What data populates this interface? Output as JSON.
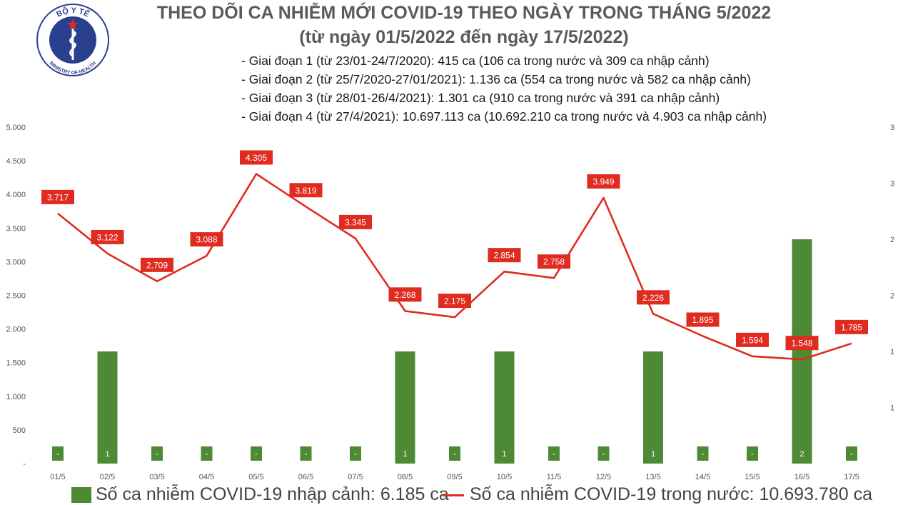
{
  "header": {
    "logo_top_text": "BỘ Y TẾ",
    "logo_bottom_text": "MINISTRY OF HEALTH",
    "title": "THEO DÕI CA NHIỄM MỚI COVID-19 THEO NGÀY TRONG THÁNG 5/2022",
    "subtitle": "(từ ngày 01/5/2022 đến ngày 17/5/2022)",
    "notes": [
      "- Giai đoạn 1 (từ 23/01-24/7/2020): 415 ca (106 ca trong nước và 309 ca nhập cảnh)",
      "- Giai đoạn 2 (từ 25/7/2020-27/01/2021): 1.136 ca (554 ca trong nước và 582 ca nhập cảnh)",
      "- Giai đoạn 3 (từ 28/01-26/4/2021): 1.301 ca (910 ca trong nước và 391 ca nhập cảnh)",
      "- Giai đoạn 4 (từ 27/4/2021): 10.697.113 ca (10.692.210 ca trong nước và 4.903 ca nhập cảnh)"
    ]
  },
  "colors": {
    "bar": "#4e8a35",
    "line": "#e02b20",
    "label_bg": "#e02b20",
    "label_text": "#ffffff"
  },
  "chart_data": {
    "type": "bar+line",
    "categories": [
      "01/5",
      "02/5",
      "03/5",
      "04/5",
      "05/5",
      "06/5",
      "07/5",
      "08/5",
      "09/5",
      "10/5",
      "11/5",
      "12/5",
      "13/5",
      "14/5",
      "15/5",
      "16/5",
      "17/5"
    ],
    "left_axis": {
      "ylim": [
        0,
        5000
      ],
      "ticks": [
        0,
        500,
        1000,
        1500,
        2000,
        2500,
        3000,
        3500,
        4000,
        4500,
        5000
      ],
      "tick_labels": [
        "-",
        "500",
        "1.000",
        "1.500",
        "2.000",
        "2.500",
        "3.000",
        "3.500",
        "4.000",
        "4.500",
        "5.000"
      ]
    },
    "right_axis": {
      "ylim": [
        0,
        3
      ],
      "ticks": [
        0.5,
        1,
        1.5,
        2,
        2.5,
        3
      ],
      "tick_labels": [
        "1",
        "1",
        "2",
        "2",
        "3",
        "3"
      ]
    },
    "series": [
      {
        "name": "Số ca nhiễm COVID-19 nhập cảnh: 6.185 ca",
        "type": "bar",
        "axis": "right",
        "values": [
          0,
          1,
          0,
          0,
          0,
          0,
          0,
          1,
          0,
          1,
          0,
          0,
          1,
          0,
          0,
          2,
          0
        ],
        "labels": [
          "-",
          "1",
          "-",
          "-",
          "-",
          "-",
          "-",
          "1",
          "-",
          "1",
          "-",
          "-",
          "1",
          "-",
          "-",
          "2",
          "-"
        ]
      },
      {
        "name": "Số ca nhiễm COVID-19 trong nước: 10.693.780 ca",
        "type": "line",
        "axis": "left",
        "values": [
          3717,
          3122,
          2709,
          3088,
          4305,
          3819,
          3345,
          2268,
          2175,
          2854,
          2758,
          3949,
          2226,
          1895,
          1594,
          1548,
          1785
        ],
        "labels": [
          "3.717",
          "3.122",
          "2.709",
          "3.088",
          "4.305",
          "3.819",
          "3.345",
          "2.268",
          "2.175",
          "2.854",
          "2.758",
          "3.949",
          "2.226",
          "1.895",
          "1.594",
          "1.548",
          "1.785"
        ]
      }
    ],
    "grid": false,
    "legend_position": "bottom"
  }
}
